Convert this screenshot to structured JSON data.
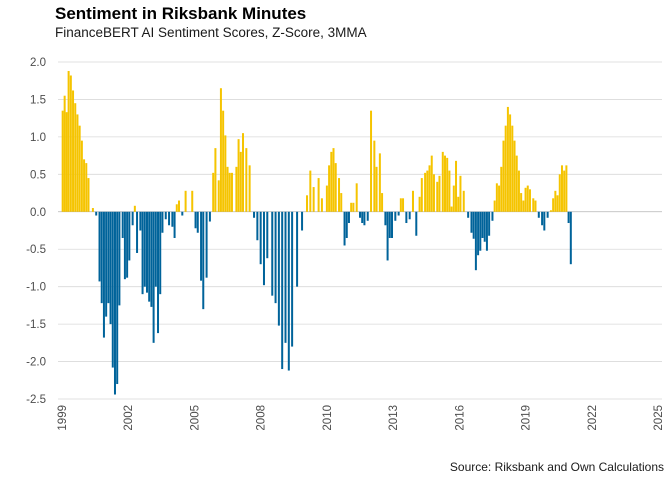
{
  "chart_data": {
    "type": "bar",
    "title": "Sentiment in Riksbank Minutes",
    "subtitle": "FinanceBERT AI Sentiment Scores, Z-Score, 3MMA",
    "caption": "Source: Riksbank and Own Calculations",
    "xlabel": "",
    "ylabel": "",
    "xlim": [
      1999.0,
      2025.0
    ],
    "ylim": [
      -2.5,
      2.0
    ],
    "y_ticks": [
      "2.0",
      "1.5",
      "1.0",
      "0.5",
      "0.0",
      "-0.5",
      "-1.0",
      "-1.5",
      "-2.0",
      "-2.5"
    ],
    "x_ticks": [
      "1999",
      "2002",
      "2005",
      "2008",
      "2010",
      "2013",
      "2016",
      "2019",
      "2022",
      "2025"
    ],
    "grid": true,
    "legend": "none",
    "colors": {
      "positive": "#F5C400",
      "negative": "#00639A",
      "grid": "#d9d9d9",
      "zero_line": "#b3b3b3"
    },
    "points": [
      {
        "x": 1999.03,
        "y": 1.35
      },
      {
        "x": 1999.12,
        "y": 1.55
      },
      {
        "x": 1999.21,
        "y": 1.33
      },
      {
        "x": 1999.3,
        "y": 1.88
      },
      {
        "x": 1999.4,
        "y": 1.82
      },
      {
        "x": 1999.5,
        "y": 1.62
      },
      {
        "x": 1999.6,
        "y": 1.45
      },
      {
        "x": 1999.7,
        "y": 1.3
      },
      {
        "x": 1999.8,
        "y": 1.15
      },
      {
        "x": 1999.9,
        "y": 0.95
      },
      {
        "x": 2000.0,
        "y": 0.7
      },
      {
        "x": 2000.1,
        "y": 0.65
      },
      {
        "x": 2000.2,
        "y": 0.45
      },
      {
        "x": 2000.4,
        "y": 0.05
      },
      {
        "x": 2000.55,
        "y": -0.05
      },
      {
        "x": 2000.7,
        "y": -0.93
      },
      {
        "x": 2000.8,
        "y": -1.22
      },
      {
        "x": 2000.9,
        "y": -1.68
      },
      {
        "x": 2001.0,
        "y": -1.4
      },
      {
        "x": 2001.1,
        "y": -1.22
      },
      {
        "x": 2001.2,
        "y": -1.5
      },
      {
        "x": 2001.3,
        "y": -2.08
      },
      {
        "x": 2001.4,
        "y": -2.44
      },
      {
        "x": 2001.5,
        "y": -2.3
      },
      {
        "x": 2001.6,
        "y": -1.25
      },
      {
        "x": 2001.75,
        "y": -0.35
      },
      {
        "x": 2001.85,
        "y": -0.9
      },
      {
        "x": 2001.95,
        "y": -0.88
      },
      {
        "x": 2002.05,
        "y": -0.65
      },
      {
        "x": 2002.2,
        "y": -0.18
      },
      {
        "x": 2002.3,
        "y": 0.08
      },
      {
        "x": 2002.4,
        "y": -0.55
      },
      {
        "x": 2002.55,
        "y": -0.25
      },
      {
        "x": 2002.65,
        "y": -1.1
      },
      {
        "x": 2002.75,
        "y": -1.0
      },
      {
        "x": 2002.85,
        "y": -1.08
      },
      {
        "x": 2002.95,
        "y": -1.2
      },
      {
        "x": 2003.05,
        "y": -1.27
      },
      {
        "x": 2003.15,
        "y": -1.75
      },
      {
        "x": 2003.25,
        "y": -1.0
      },
      {
        "x": 2003.35,
        "y": -1.62
      },
      {
        "x": 2003.45,
        "y": -1.1
      },
      {
        "x": 2003.55,
        "y": -0.28
      },
      {
        "x": 2003.7,
        "y": -0.1
      },
      {
        "x": 2003.85,
        "y": -0.18
      },
      {
        "x": 2004.0,
        "y": -0.2
      },
      {
        "x": 2004.1,
        "y": -0.35
      },
      {
        "x": 2004.2,
        "y": 0.1
      },
      {
        "x": 2004.3,
        "y": 0.15
      },
      {
        "x": 2004.45,
        "y": -0.05
      },
      {
        "x": 2004.6,
        "y": 0.28
      },
      {
        "x": 2004.9,
        "y": 0.28
      },
      {
        "x": 2005.05,
        "y": -0.22
      },
      {
        "x": 2005.15,
        "y": -0.28
      },
      {
        "x": 2005.3,
        "y": -0.92
      },
      {
        "x": 2005.4,
        "y": -1.3
      },
      {
        "x": 2005.55,
        "y": -0.88
      },
      {
        "x": 2005.7,
        "y": -0.13
      },
      {
        "x": 2005.85,
        "y": 0.52
      },
      {
        "x": 2005.95,
        "y": 0.85
      },
      {
        "x": 2006.1,
        "y": 0.42
      },
      {
        "x": 2006.2,
        "y": 1.65
      },
      {
        "x": 2006.3,
        "y": 1.35
      },
      {
        "x": 2006.4,
        "y": 1.02
      },
      {
        "x": 2006.5,
        "y": 0.6
      },
      {
        "x": 2006.6,
        "y": 0.52
      },
      {
        "x": 2006.7,
        "y": 0.52
      },
      {
        "x": 2006.9,
        "y": 0.6
      },
      {
        "x": 2007.0,
        "y": 0.97
      },
      {
        "x": 2007.1,
        "y": 0.8
      },
      {
        "x": 2007.2,
        "y": 1.05
      },
      {
        "x": 2007.35,
        "y": 0.85
      },
      {
        "x": 2007.5,
        "y": 0.62
      },
      {
        "x": 2007.7,
        "y": -0.08
      },
      {
        "x": 2007.85,
        "y": -0.38
      },
      {
        "x": 2008.0,
        "y": -0.7
      },
      {
        "x": 2008.1,
        "y": -0.98
      },
      {
        "x": 2008.2,
        "y": -0.62
      },
      {
        "x": 2008.35,
        "y": -1.12
      },
      {
        "x": 2008.45,
        "y": -1.22
      },
      {
        "x": 2008.55,
        "y": -1.52
      },
      {
        "x": 2008.65,
        "y": -2.1
      },
      {
        "x": 2008.75,
        "y": -1.75
      },
      {
        "x": 2008.85,
        "y": -2.12
      },
      {
        "x": 2008.95,
        "y": -1.8
      },
      {
        "x": 2009.1,
        "y": -1.0
      },
      {
        "x": 2009.25,
        "y": -0.25
      },
      {
        "x": 2009.4,
        "y": 0.22
      },
      {
        "x": 2009.5,
        "y": 0.55
      },
      {
        "x": 2009.6,
        "y": 0.33
      },
      {
        "x": 2009.75,
        "y": 0.45
      },
      {
        "x": 2009.85,
        "y": 0.18
      },
      {
        "x": 2010.0,
        "y": 0.35
      },
      {
        "x": 2010.1,
        "y": 0.62
      },
      {
        "x": 2010.2,
        "y": 0.8
      },
      {
        "x": 2010.3,
        "y": 0.85
      },
      {
        "x": 2010.4,
        "y": 0.65
      },
      {
        "x": 2010.55,
        "y": 0.45
      },
      {
        "x": 2010.65,
        "y": 0.25
      },
      {
        "x": 2010.8,
        "y": -0.45
      },
      {
        "x": 2010.9,
        "y": -0.35
      },
      {
        "x": 2011.0,
        "y": -0.15
      },
      {
        "x": 2011.1,
        "y": 0.12
      },
      {
        "x": 2011.2,
        "y": 0.12
      },
      {
        "x": 2011.35,
        "y": 0.38
      },
      {
        "x": 2011.5,
        "y": -0.08
      },
      {
        "x": 2011.6,
        "y": -0.15
      },
      {
        "x": 2011.7,
        "y": -0.18
      },
      {
        "x": 2011.85,
        "y": -0.12
      },
      {
        "x": 2012.0,
        "y": 1.35
      },
      {
        "x": 2012.15,
        "y": 0.95
      },
      {
        "x": 2012.25,
        "y": 0.6
      },
      {
        "x": 2012.4,
        "y": 0.78
      },
      {
        "x": 2012.5,
        "y": 0.25
      },
      {
        "x": 2012.65,
        "y": -0.18
      },
      {
        "x": 2012.75,
        "y": -0.65
      },
      {
        "x": 2012.85,
        "y": -0.35
      },
      {
        "x": 2012.95,
        "y": -0.35
      },
      {
        "x": 2013.1,
        "y": -0.12
      },
      {
        "x": 2013.25,
        "y": -0.05
      },
      {
        "x": 2013.35,
        "y": 0.18
      },
      {
        "x": 2013.45,
        "y": 0.18
      },
      {
        "x": 2013.6,
        "y": -0.15
      },
      {
        "x": 2013.75,
        "y": -0.1
      },
      {
        "x": 2013.9,
        "y": 0.28
      },
      {
        "x": 2014.05,
        "y": -0.32
      },
      {
        "x": 2014.2,
        "y": 0.2
      },
      {
        "x": 2014.3,
        "y": 0.45
      },
      {
        "x": 2014.45,
        "y": 0.52
      },
      {
        "x": 2014.55,
        "y": 0.55
      },
      {
        "x": 2014.65,
        "y": 0.62
      },
      {
        "x": 2014.75,
        "y": 0.75
      },
      {
        "x": 2014.85,
        "y": 0.5
      },
      {
        "x": 2015.0,
        "y": 0.4
      },
      {
        "x": 2015.1,
        "y": 0.48
      },
      {
        "x": 2015.25,
        "y": 0.8
      },
      {
        "x": 2015.35,
        "y": 0.75
      },
      {
        "x": 2015.45,
        "y": 0.72
      },
      {
        "x": 2015.55,
        "y": 0.55
      },
      {
        "x": 2015.65,
        "y": 0.07
      },
      {
        "x": 2015.75,
        "y": 0.35
      },
      {
        "x": 2015.85,
        "y": 0.68
      },
      {
        "x": 2015.95,
        "y": 0.2
      },
      {
        "x": 2016.05,
        "y": 0.48
      },
      {
        "x": 2016.2,
        "y": 0.28
      },
      {
        "x": 2016.4,
        "y": -0.08
      },
      {
        "x": 2016.55,
        "y": -0.28
      },
      {
        "x": 2016.65,
        "y": -0.36
      },
      {
        "x": 2016.75,
        "y": -0.78
      },
      {
        "x": 2016.85,
        "y": -0.58
      },
      {
        "x": 2016.95,
        "y": -0.52
      },
      {
        "x": 2017.05,
        "y": -0.35
      },
      {
        "x": 2017.15,
        "y": -0.4
      },
      {
        "x": 2017.25,
        "y": -0.52
      },
      {
        "x": 2017.35,
        "y": -0.32
      },
      {
        "x": 2017.5,
        "y": -0.12
      },
      {
        "x": 2017.6,
        "y": 0.15
      },
      {
        "x": 2017.7,
        "y": 0.38
      },
      {
        "x": 2017.8,
        "y": 0.35
      },
      {
        "x": 2017.9,
        "y": 0.6
      },
      {
        "x": 2018.0,
        "y": 0.95
      },
      {
        "x": 2018.1,
        "y": 1.15
      },
      {
        "x": 2018.2,
        "y": 1.4
      },
      {
        "x": 2018.3,
        "y": 1.3
      },
      {
        "x": 2018.4,
        "y": 1.15
      },
      {
        "x": 2018.5,
        "y": 0.95
      },
      {
        "x": 2018.6,
        "y": 0.75
      },
      {
        "x": 2018.7,
        "y": 0.55
      },
      {
        "x": 2018.8,
        "y": 0.25
      },
      {
        "x": 2018.9,
        "y": 0.15
      },
      {
        "x": 2019.0,
        "y": 0.32
      },
      {
        "x": 2019.1,
        "y": 0.35
      },
      {
        "x": 2019.2,
        "y": 0.3
      },
      {
        "x": 2019.35,
        "y": 0.18
      },
      {
        "x": 2019.45,
        "y": 0.15
      },
      {
        "x": 2019.6,
        "y": -0.08
      },
      {
        "x": 2019.75,
        "y": -0.18
      },
      {
        "x": 2019.85,
        "y": -0.25
      },
      {
        "x": 2020.0,
        "y": -0.08
      },
      {
        "x": 2020.15,
        "y": 0.02
      },
      {
        "x": 2020.25,
        "y": 0.18
      },
      {
        "x": 2020.35,
        "y": 0.28
      },
      {
        "x": 2020.45,
        "y": 0.22
      },
      {
        "x": 2020.55,
        "y": 0.5
      },
      {
        "x": 2020.65,
        "y": 0.62
      },
      {
        "x": 2020.75,
        "y": 0.55
      },
      {
        "x": 2020.85,
        "y": 0.62
      },
      {
        "x": 2020.95,
        "y": -0.15
      },
      {
        "x": 2021.05,
        "y": -0.7
      }
    ],
    "_x_axis_note": "x values above are on the printed tick scale; tick labels are spaced uniformly"
  }
}
